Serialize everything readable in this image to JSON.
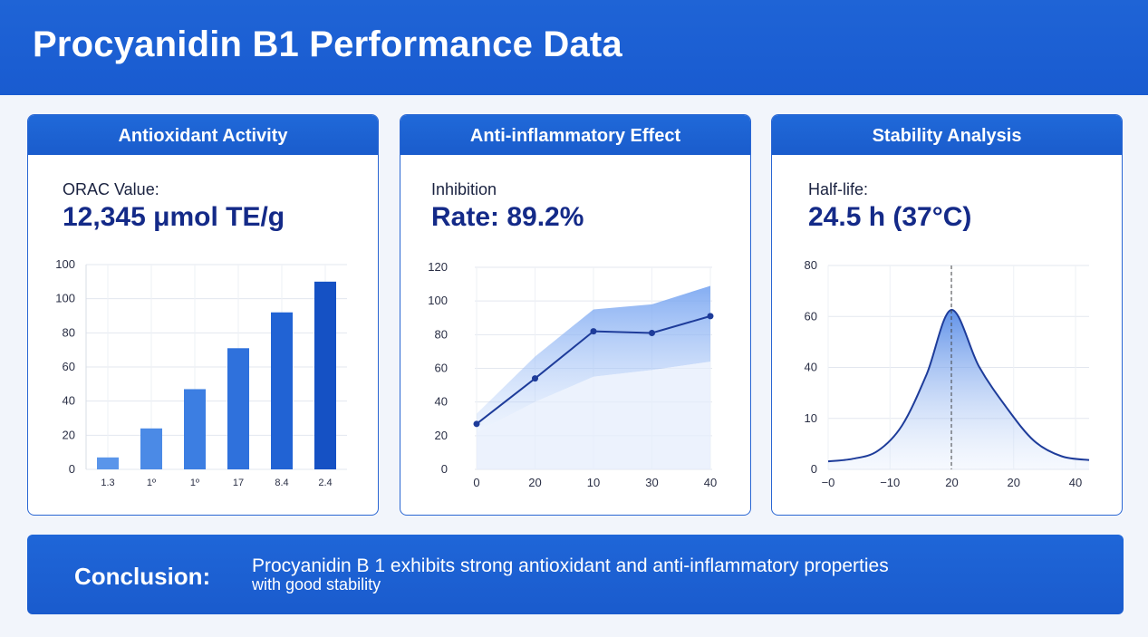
{
  "title": "Procyanidin B1 Performance Data",
  "cards": [
    {
      "heading": "Antioxidant Activity",
      "label": "ORAC Value:",
      "value": "12,345 μmol TE/g"
    },
    {
      "heading": "Anti-inflammatory Effect",
      "label": "Inhibition",
      "value": "Rate: 89.2%"
    },
    {
      "heading": "Stability Analysis",
      "label": "Half-life:",
      "value": "24.5 h (37°C)"
    }
  ],
  "conclusion": {
    "label": "Conclusion:",
    "line1": "Procyanidin B 1 exhibits strong antioxidant and anti-inflammatory properties",
    "line2": "with good stability"
  },
  "chart_data": [
    {
      "type": "bar",
      "categories": [
        "1.3",
        "1º",
        "1º",
        "17",
        "8.4",
        "2.4"
      ],
      "values": [
        7,
        24,
        47,
        71,
        92,
        110
      ],
      "y_ticks": [
        "0",
        "20",
        "40",
        "60",
        "80",
        "100",
        "100"
      ],
      "ylim": [
        0,
        120
      ],
      "grid": true,
      "colors": [
        "#5a95ea",
        "#4b8ae6",
        "#3c7ee2",
        "#2f71dc",
        "#2163d4",
        "#1551c4"
      ]
    },
    {
      "type": "line",
      "x_ticks": [
        "0",
        "20",
        "10",
        "30",
        "40"
      ],
      "y_ticks": [
        "0",
        "20",
        "40",
        "60",
        "80",
        "100",
        "120"
      ],
      "ylim": [
        0,
        120
      ],
      "series": [
        {
          "values": [
            27,
            54,
            82,
            81,
            91
          ]
        }
      ],
      "band_upper": [
        33,
        67,
        95,
        98,
        109
      ],
      "band_lower": [
        22,
        40,
        55,
        59,
        64
      ],
      "grid": true,
      "color": "#1e3c9a"
    },
    {
      "type": "area",
      "x_ticks": [
        "−0",
        "−10",
        "20",
        "20",
        "40"
      ],
      "y_ticks": [
        "0",
        "10",
        "40",
        "60",
        "80"
      ],
      "series": [
        {
          "values": [
            1,
            2,
            5,
            15,
            35,
            60,
            38,
            22,
            9,
            3,
            1.5
          ]
        }
      ],
      "peak_marker": true,
      "grid": true,
      "color": "#1e3c9a"
    }
  ]
}
